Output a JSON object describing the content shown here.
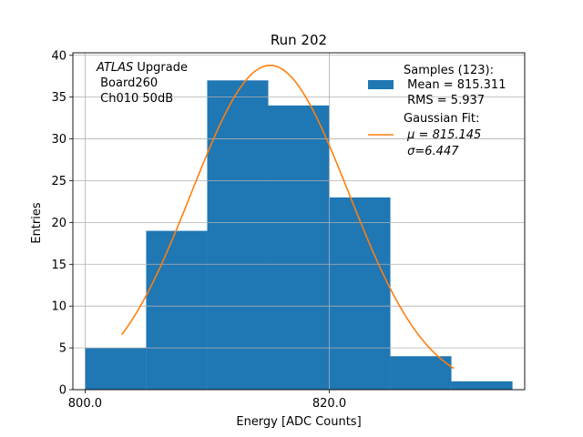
{
  "chart_data": {
    "type": "bar",
    "title": "Run 202",
    "xlabel": "Energy [ADC Counts]",
    "ylabel": "Entries",
    "xlim": [
      799.0,
      836.0
    ],
    "ylim": [
      0,
      40.3
    ],
    "bin_edges": [
      800,
      805,
      810,
      815,
      820,
      825,
      830,
      835
    ],
    "values": [
      5,
      19,
      37,
      34,
      23,
      4,
      1
    ],
    "bar_color": "#1f77b4",
    "fit_color": "#ff7f0e",
    "grid": true,
    "x_ticks": [
      800.0,
      820.0
    ],
    "x_tick_labels": [
      "800.0",
      "820.0"
    ],
    "y_ticks": [
      0,
      5,
      10,
      15,
      20,
      25,
      30,
      35,
      40
    ],
    "y_tick_labels": [
      "0",
      "5",
      "10",
      "15",
      "20",
      "25",
      "30",
      "35",
      "40"
    ],
    "fit": {
      "mean": 815.145,
      "sigma": 6.447,
      "amplitude": 38.8,
      "x_range": [
        803.0,
        830.2
      ]
    },
    "annotation": {
      "experiment": "ATLAS",
      "experiment_suffix": " Upgrade",
      "board": "Board260",
      "channel": "Ch010 50dB"
    },
    "legend": {
      "position": "top-right",
      "samples_line1": "Samples (123):",
      "samples_line2": "Mean = 815.311",
      "samples_line3": "RMS = 5.937",
      "fit_line1": "Gaussian Fit:",
      "fit_line2": "μ = 815.145",
      "fit_line3": "σ=6.447"
    }
  }
}
